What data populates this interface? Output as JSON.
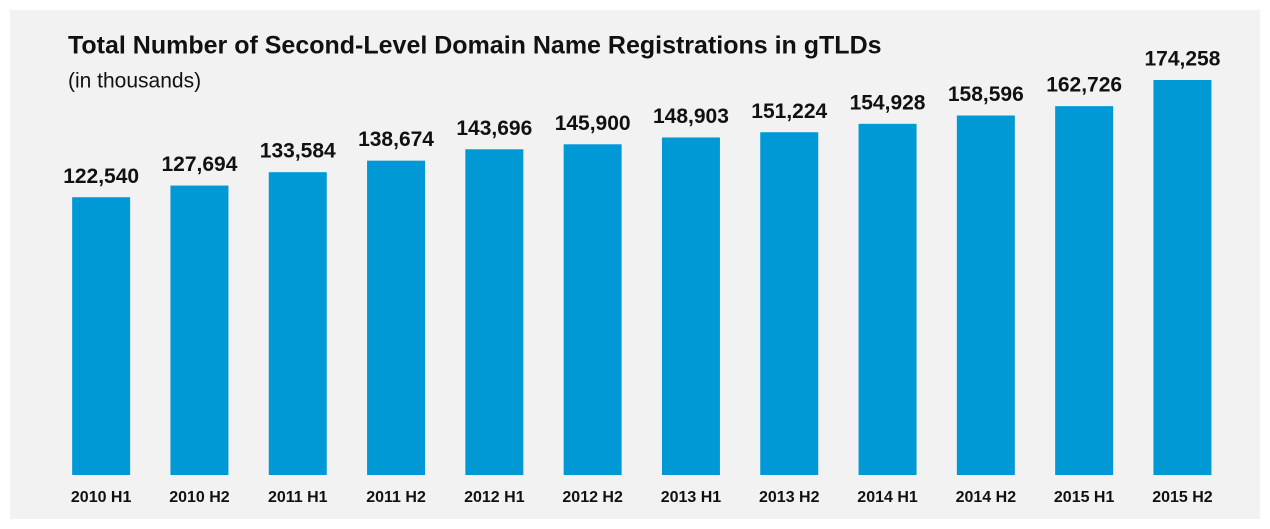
{
  "chart_data": {
    "type": "bar",
    "title": "Total Number of Second-Level Domain Name Registrations in gTLDs",
    "subtitle": "(in thousands)",
    "categories": [
      "2010 H1",
      "2010 H2",
      "2011 H1",
      "2011 H2",
      "2012 H1",
      "2012 H2",
      "2013 H1",
      "2013 H2",
      "2014 H1",
      "2014 H2",
      "2015 H1",
      "2015 H2"
    ],
    "values": [
      122540,
      127694,
      133584,
      138674,
      143696,
      145900,
      148903,
      151224,
      154928,
      158596,
      162726,
      174258
    ],
    "value_labels": [
      "122,540",
      "127,694",
      "133,584",
      "138,674",
      "143,696",
      "145,900",
      "148,903",
      "151,224",
      "154,928",
      "158,596",
      "162,726",
      "174,258"
    ],
    "color": "#0099d6"
  }
}
